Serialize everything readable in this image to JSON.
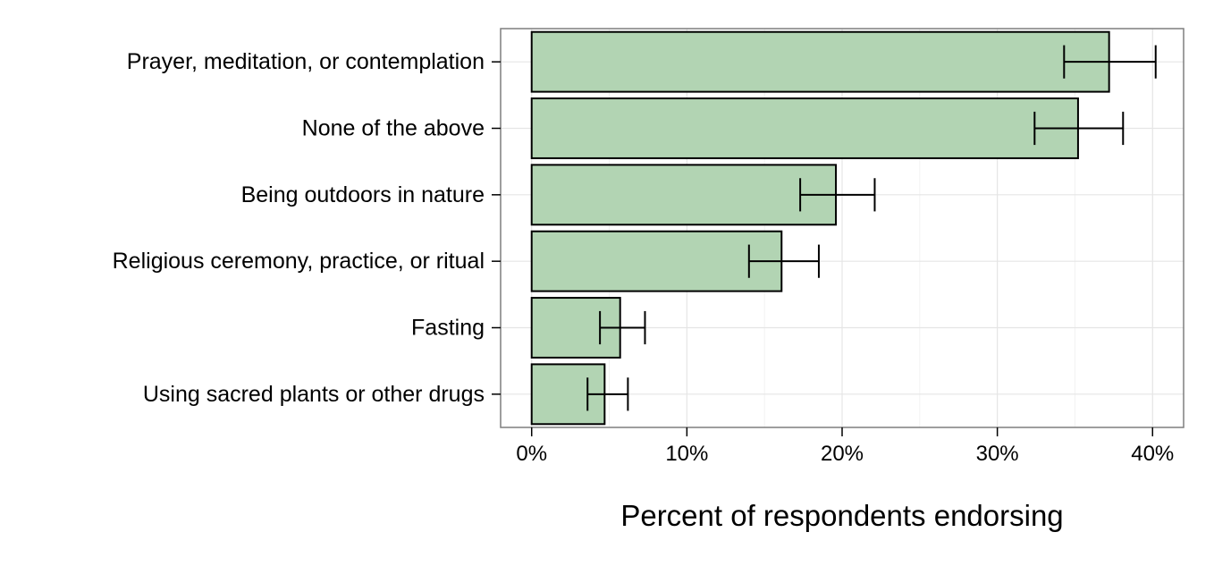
{
  "chart_data": {
    "type": "bar",
    "orientation": "horizontal",
    "categories": [
      "Prayer, meditation, or contemplation",
      "None of the above",
      "Being outdoors in nature",
      "Religious ceremony, practice, or ritual",
      "Fasting",
      "Using sacred plants or other drugs"
    ],
    "values": [
      37.2,
      35.2,
      19.6,
      16.1,
      5.7,
      4.7
    ],
    "error_low": [
      34.3,
      32.4,
      17.3,
      14.0,
      4.4,
      3.6
    ],
    "error_high": [
      40.2,
      38.1,
      22.1,
      18.5,
      7.3,
      6.2
    ],
    "xlabel": "Percent of respondents endorsing",
    "ylabel": "",
    "title": "",
    "xlim": [
      -2.0,
      42.0
    ],
    "x_ticks": [
      0,
      10,
      20,
      30,
      40
    ],
    "x_tick_labels": [
      "0%",
      "10%",
      "20%",
      "30%",
      "40%"
    ],
    "grid": true,
    "legend": "none",
    "colors": {
      "bar_fill": "#b2d4b3",
      "bar_stroke": "#000000",
      "panel_border": "#7f7f7f",
      "grid_major": "#e5e5e5",
      "grid_minor": "#f2f2f2"
    }
  }
}
